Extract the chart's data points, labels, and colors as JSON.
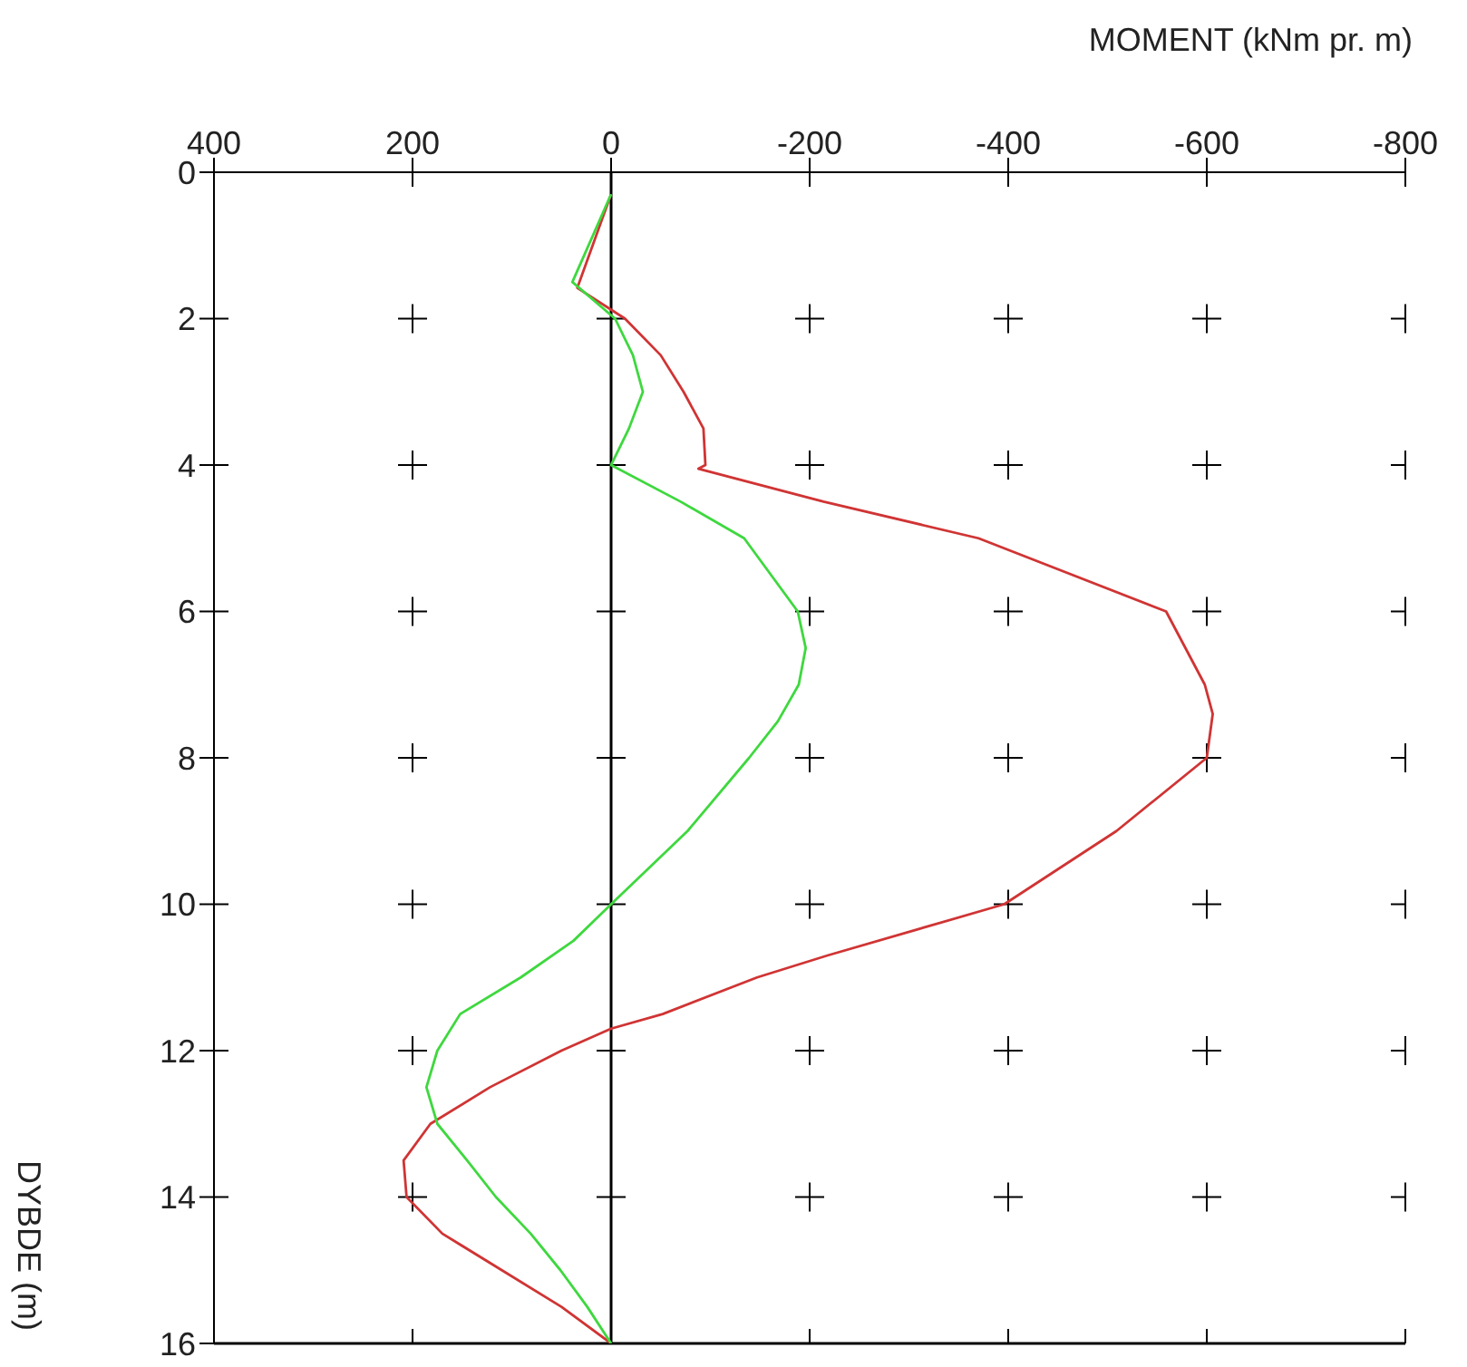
{
  "chart_data": {
    "type": "line",
    "orientation": "horizontal",
    "xlabel": "MOMENT (kNm pr. m)",
    "ylabel": "DYBDE (m)",
    "xlim": [
      400,
      -800
    ],
    "xticks": [
      400,
      200,
      0,
      -200,
      -400,
      -600,
      -800
    ],
    "ylim": [
      16,
      0
    ],
    "yticks": [
      0,
      2,
      4,
      6,
      8,
      10,
      12,
      14,
      16
    ],
    "grid": true,
    "marker": "none",
    "line_style": "solid",
    "ref_lines": [
      {
        "axis": "x",
        "value": 0,
        "color": "#000000"
      },
      {
        "axis": "y",
        "value": 16,
        "color": "#000000"
      }
    ],
    "series": [
      {
        "color": "#d03434",
        "x": [
          0.3,
          1.58,
          2,
          2.5,
          3,
          3.5,
          4,
          4.05,
          4.5,
          5,
          6,
          7,
          7.4,
          8,
          9,
          10,
          10.7,
          11,
          11.5,
          11.7,
          12,
          12.5,
          13,
          13.5,
          14,
          14.5,
          15,
          15.5,
          16
        ],
        "values": [
          0,
          34,
          -14,
          -50,
          -73,
          -93,
          -95,
          -88,
          -214,
          -370,
          -559,
          -598,
          -606,
          -600,
          -509,
          -396,
          -218,
          -147,
          -52,
          0,
          50,
          122,
          182,
          209,
          206,
          170,
          110,
          50,
          0
        ]
      },
      {
        "color": "#3ed83e",
        "x": [
          0.3,
          1.5,
          2,
          2.5,
          3,
          3.5,
          4,
          4.5,
          5,
          6,
          6.5,
          7,
          7.5,
          8,
          9,
          10,
          10.5,
          11,
          11.5,
          12,
          12.5,
          13,
          13.5,
          14,
          14.5,
          15,
          15.5,
          16
        ],
        "values": [
          0,
          39,
          -4,
          -22,
          -32,
          -18,
          0,
          -70,
          -134,
          -188,
          -196,
          -189,
          -168,
          -139,
          -77,
          0,
          38,
          91,
          152,
          175,
          186,
          175,
          145,
          116,
          81,
          51,
          24,
          0
        ]
      }
    ]
  }
}
